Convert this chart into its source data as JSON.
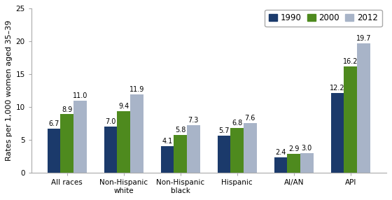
{
  "categories": [
    "All races",
    "Non-Hispanic\nwhite",
    "Non-Hispanic\nblack",
    "Hispanic",
    "AI/AN",
    "API"
  ],
  "series": {
    "1990": [
      6.7,
      7.0,
      4.1,
      5.7,
      2.4,
      12.2
    ],
    "2000": [
      8.9,
      9.4,
      5.8,
      6.8,
      2.9,
      16.2
    ],
    "2012": [
      11.0,
      11.9,
      7.3,
      7.6,
      3.0,
      19.7
    ]
  },
  "colors": {
    "1990": "#1b3a6b",
    "2000": "#4e8a1e",
    "2012": "#a8b4c8"
  },
  "ylabel": "Rates per 1,000 women aged 35–39",
  "ylim": [
    0,
    25
  ],
  "yticks": [
    0,
    5,
    10,
    15,
    20,
    25
  ],
  "legend_labels": [
    "1990",
    "2000",
    "2012"
  ],
  "bar_width": 0.23,
  "label_fontsize": 7.0,
  "tick_fontsize": 7.5,
  "legend_fontsize": 8.5,
  "ylabel_fontsize": 8.0
}
